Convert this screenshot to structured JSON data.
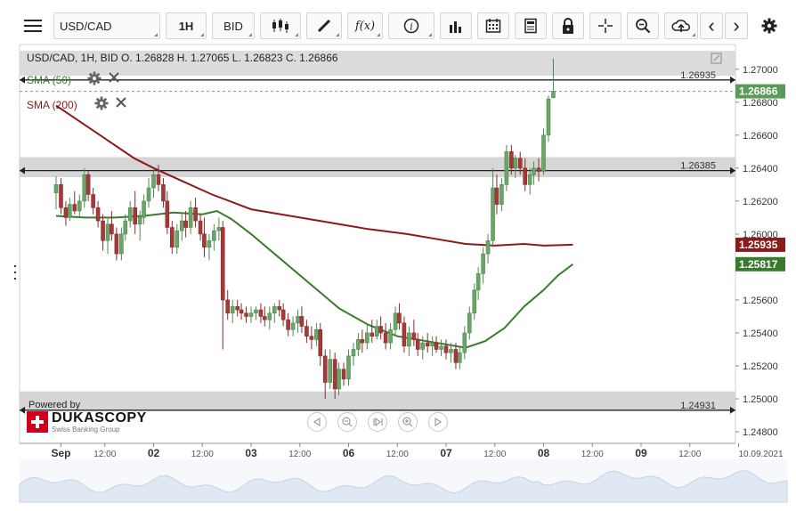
{
  "toolbar": {
    "menu_icon": "hamburger-icon",
    "symbol": "USD/CAD",
    "timeframe": "1H",
    "price_side": "BID",
    "chart_type_icon": "candlestick-icon",
    "draw_icon": "pencil-icon",
    "fx_label": "f(x)",
    "info_icon": "info-icon",
    "volume_icon": "bar-chart-icon",
    "calendar_icon": "calendar-icon",
    "notes_icon": "document-icon",
    "lock_icon": "lock-icon",
    "crosshair_icon": "crosshair-icon",
    "zoom_icon": "magnifier-icon",
    "upload_icon": "cloud-upload-icon",
    "back_label": "‹",
    "forward_label": "›",
    "settings_icon": "gear-icon"
  },
  "header": {
    "ohlc": "USD/CAD, 1H, BID   O. 1.26828 H. 1.27065 L. 1.26823 C. 1.26866"
  },
  "indicators": [
    {
      "label": "SMA (50)",
      "color": "#3a7a2e"
    },
    {
      "label": "SMA (200)",
      "color": "#8b1a1a"
    }
  ],
  "branding": {
    "powered_by": "Powered by",
    "name": "DUKASCOPY",
    "sub": "Swiss Banking Group"
  },
  "chart_data": {
    "type": "candlestick",
    "symbol": "USD/CAD",
    "timeframe": "1H",
    "ohlc_last": {
      "open": 1.26828,
      "high": 1.27065,
      "low": 1.26823,
      "close": 1.26866
    },
    "y_ticks": [
      "1.27000",
      "1.26800",
      "1.26600",
      "1.26400",
      "1.26200",
      "1.26000",
      "1.25800",
      "1.25600",
      "1.25400",
      "1.25200",
      "1.25000",
      "1.24800"
    ],
    "ylim": [
      1.2473,
      1.2715
    ],
    "x_ticks": [
      {
        "label": "Sep",
        "day": 0.05,
        "bold": true
      },
      {
        "label": "12:00",
        "day": 0.5
      },
      {
        "label": "02",
        "day": 1.0,
        "bold": true
      },
      {
        "label": "12:00",
        "day": 1.5
      },
      {
        "label": "03",
        "day": 2.0,
        "bold": true
      },
      {
        "label": "12:00",
        "day": 2.5
      },
      {
        "label": "06",
        "day": 3.0,
        "bold": true
      },
      {
        "label": "12:00",
        "day": 3.5
      },
      {
        "label": "07",
        "day": 4.0,
        "bold": true
      },
      {
        "label": "12:00",
        "day": 4.5
      },
      {
        "label": "08",
        "day": 5.0,
        "bold": true
      },
      {
        "label": "12:00",
        "day": 5.5
      },
      {
        "label": "09",
        "day": 6.0,
        "bold": true
      },
      {
        "label": "12:00",
        "day": 6.5
      },
      {
        "label": "10.09.2021",
        "day": 7.0
      }
    ],
    "horizontal_levels": [
      {
        "value": 1.26935,
        "label": "1.26935"
      },
      {
        "value": 1.26385,
        "label": "1.26385"
      },
      {
        "value": 1.24931,
        "label": "1.24931"
      }
    ],
    "zones": [
      [
        1.26467,
        1.26345
      ],
      [
        1.25045,
        1.24931
      ]
    ],
    "price_tags": [
      {
        "value": 1.26866,
        "label": "1.26866",
        "color": "#5a9a5a"
      },
      {
        "value": 1.25935,
        "label": "1.25935",
        "color": "#8b1a1a"
      },
      {
        "value": 1.25817,
        "label": "1.25817",
        "color": "#3a7a2e"
      }
    ],
    "sma200": [
      [
        0.0,
        1.2678
      ],
      [
        0.4,
        1.2662
      ],
      [
        0.8,
        1.2646
      ],
      [
        1.0,
        1.264
      ],
      [
        1.3,
        1.2632
      ],
      [
        1.6,
        1.2624
      ],
      [
        2.0,
        1.2615
      ],
      [
        2.4,
        1.2611
      ],
      [
        2.8,
        1.2607
      ],
      [
        3.2,
        1.2603
      ],
      [
        3.6,
        1.26
      ],
      [
        4.0,
        1.2596
      ],
      [
        4.2,
        1.2594
      ],
      [
        4.5,
        1.2593
      ],
      [
        4.8,
        1.2594
      ],
      [
        5.0,
        1.2593
      ],
      [
        5.3,
        1.25935
      ]
    ],
    "sma50": [
      [
        0.0,
        1.2611
      ],
      [
        0.3,
        1.261
      ],
      [
        0.6,
        1.261
      ],
      [
        0.9,
        1.2611
      ],
      [
        1.2,
        1.2613
      ],
      [
        1.5,
        1.2612
      ],
      [
        1.65,
        1.2614
      ],
      [
        1.8,
        1.2609
      ],
      [
        2.0,
        1.26
      ],
      [
        2.3,
        1.2585
      ],
      [
        2.6,
        1.257
      ],
      [
        2.9,
        1.2555
      ],
      [
        3.2,
        1.2545
      ],
      [
        3.5,
        1.2538
      ],
      [
        3.8,
        1.2535
      ],
      [
        4.0,
        1.2533
      ],
      [
        4.2,
        1.2531
      ],
      [
        4.4,
        1.2535
      ],
      [
        4.6,
        1.2543
      ],
      [
        4.8,
        1.2556
      ],
      [
        5.0,
        1.2566
      ],
      [
        5.15,
        1.2575
      ],
      [
        5.3,
        1.25817
      ]
    ],
    "candles": [
      [
        0.0,
        1.2625,
        1.2635,
        1.2615,
        1.263
      ],
      [
        0.05,
        1.263,
        1.2634,
        1.2612,
        1.2616
      ],
      [
        0.1,
        1.2616,
        1.262,
        1.2605,
        1.261
      ],
      [
        0.14,
        1.261,
        1.2622,
        1.2608,
        1.2618
      ],
      [
        0.19,
        1.2618,
        1.2626,
        1.2612,
        1.2614
      ],
      [
        0.24,
        1.2614,
        1.2624,
        1.261,
        1.262
      ],
      [
        0.29,
        1.262,
        1.264,
        1.2616,
        1.2636
      ],
      [
        0.33,
        1.2636,
        1.2638,
        1.262,
        1.2624
      ],
      [
        0.38,
        1.2624,
        1.2628,
        1.2612,
        1.2616
      ],
      [
        0.43,
        1.2616,
        1.262,
        1.2604,
        1.2608
      ],
      [
        0.48,
        1.2608,
        1.2612,
        1.259,
        1.2596
      ],
      [
        0.53,
        1.2596,
        1.261,
        1.2588,
        1.2606
      ],
      [
        0.57,
        1.2606,
        1.2614,
        1.2596,
        1.26
      ],
      [
        0.62,
        1.26,
        1.2604,
        1.2584,
        1.2588
      ],
      [
        0.67,
        1.2588,
        1.2604,
        1.2584,
        1.26
      ],
      [
        0.71,
        1.26,
        1.2612,
        1.2596,
        1.2608
      ],
      [
        0.76,
        1.2608,
        1.262,
        1.2604,
        1.2616
      ],
      [
        0.81,
        1.2616,
        1.2626,
        1.26,
        1.2606
      ],
      [
        0.86,
        1.2606,
        1.2614,
        1.2596,
        1.261
      ],
      [
        0.9,
        1.261,
        1.2624,
        1.2606,
        1.262
      ],
      [
        0.95,
        1.262,
        1.2634,
        1.2616,
        1.2628
      ],
      [
        1.0,
        1.2628,
        1.264,
        1.2622,
        1.2636
      ],
      [
        1.05,
        1.2636,
        1.2642,
        1.2626,
        1.263
      ],
      [
        1.1,
        1.263,
        1.2634,
        1.2616,
        1.262
      ],
      [
        1.14,
        1.262,
        1.2626,
        1.26,
        1.2604
      ],
      [
        1.19,
        1.2604,
        1.2608,
        1.2588,
        1.2592
      ],
      [
        1.24,
        1.2592,
        1.2606,
        1.2588,
        1.2602
      ],
      [
        1.29,
        1.2602,
        1.2612,
        1.2596,
        1.2608
      ],
      [
        1.33,
        1.2608,
        1.2614,
        1.2598,
        1.2604
      ],
      [
        1.38,
        1.2604,
        1.262,
        1.26,
        1.2616
      ],
      [
        1.43,
        1.2616,
        1.2622,
        1.2604,
        1.2608
      ],
      [
        1.48,
        1.2608,
        1.2612,
        1.2596,
        1.26
      ],
      [
        1.52,
        1.26,
        1.261,
        1.2586,
        1.2592
      ],
      [
        1.57,
        1.2592,
        1.26,
        1.2584,
        1.2596
      ],
      [
        1.62,
        1.2596,
        1.2606,
        1.259,
        1.2602
      ],
      [
        1.67,
        1.2602,
        1.261,
        1.2596,
        1.2604
      ],
      [
        1.71,
        1.2604,
        1.2608,
        1.253,
        1.256
      ],
      [
        1.76,
        1.256,
        1.2566,
        1.2548,
        1.2552
      ],
      [
        1.81,
        1.2552,
        1.256,
        1.2546,
        1.2556
      ],
      [
        1.86,
        1.2556,
        1.256,
        1.255,
        1.2554
      ],
      [
        1.9,
        1.2554,
        1.2558,
        1.2548,
        1.2552
      ],
      [
        1.95,
        1.2552,
        1.2556,
        1.2546,
        1.255
      ],
      [
        2.0,
        1.255,
        1.2556,
        1.2546,
        1.2552
      ],
      [
        2.05,
        1.2552,
        1.2556,
        1.2548,
        1.2554
      ],
      [
        2.1,
        1.2554,
        1.2558,
        1.2546,
        1.255
      ],
      [
        2.14,
        1.255,
        1.2556,
        1.2544,
        1.2548
      ],
      [
        2.19,
        1.2548,
        1.2556,
        1.2542,
        1.2552
      ],
      [
        2.24,
        1.2552,
        1.2558,
        1.2546,
        1.2556
      ],
      [
        2.29,
        1.2556,
        1.256,
        1.255,
        1.2554
      ],
      [
        2.33,
        1.2554,
        1.2558,
        1.2544,
        1.2548
      ],
      [
        2.38,
        1.2548,
        1.2552,
        1.2538,
        1.2542
      ],
      [
        2.43,
        1.2542,
        1.255,
        1.2538,
        1.2546
      ],
      [
        2.48,
        1.2546,
        1.2554,
        1.254,
        1.255
      ],
      [
        2.52,
        1.255,
        1.2556,
        1.254,
        1.2544
      ],
      [
        2.57,
        1.2544,
        1.2548,
        1.2534,
        1.2538
      ],
      [
        2.62,
        1.2538,
        1.2544,
        1.253,
        1.2536
      ],
      [
        2.67,
        1.2536,
        1.2546,
        1.2532,
        1.2542
      ],
      [
        2.71,
        1.2542,
        1.2546,
        1.252,
        1.2526
      ],
      [
        2.76,
        1.2526,
        1.253,
        1.25,
        1.251
      ],
      [
        2.81,
        1.251,
        1.253,
        1.2506,
        1.2524
      ],
      [
        2.86,
        1.2524,
        1.2528,
        1.25,
        1.2506
      ],
      [
        2.9,
        1.2506,
        1.2522,
        1.2502,
        1.2518
      ],
      [
        2.95,
        1.2518,
        1.2522,
        1.2508,
        1.2512
      ],
      [
        3.0,
        1.2512,
        1.253,
        1.2508,
        1.2526
      ],
      [
        3.05,
        1.2526,
        1.2534,
        1.252,
        1.253
      ],
      [
        3.1,
        1.253,
        1.254,
        1.2526,
        1.2536
      ],
      [
        3.14,
        1.2536,
        1.2542,
        1.2528,
        1.2534
      ],
      [
        3.19,
        1.2534,
        1.2546,
        1.253,
        1.254
      ],
      [
        3.24,
        1.254,
        1.2548,
        1.2534,
        1.2538
      ],
      [
        3.29,
        1.2538,
        1.2548,
        1.2536,
        1.2544
      ],
      [
        3.33,
        1.2544,
        1.255,
        1.2536,
        1.254
      ],
      [
        3.38,
        1.254,
        1.2546,
        1.253,
        1.2534
      ],
      [
        3.43,
        1.2534,
        1.2546,
        1.253,
        1.2542
      ],
      [
        3.48,
        1.2542,
        1.2556,
        1.2538,
        1.2552
      ],
      [
        3.52,
        1.2552,
        1.2558,
        1.2542,
        1.2546
      ],
      [
        3.57,
        1.2546,
        1.255,
        1.2528,
        1.2532
      ],
      [
        3.62,
        1.2532,
        1.2544,
        1.2526,
        1.254
      ],
      [
        3.67,
        1.254,
        1.2548,
        1.2532,
        1.2536
      ],
      [
        3.71,
        1.2536,
        1.254,
        1.2526,
        1.253
      ],
      [
        3.76,
        1.253,
        1.2538,
        1.2524,
        1.2534
      ],
      [
        3.81,
        1.2534,
        1.254,
        1.2528,
        1.2532
      ],
      [
        3.86,
        1.2532,
        1.2538,
        1.2526,
        1.2534
      ],
      [
        3.9,
        1.2534,
        1.2538,
        1.2528,
        1.253
      ],
      [
        3.95,
        1.253,
        1.2536,
        1.2526,
        1.2532
      ],
      [
        4.0,
        1.2532,
        1.2536,
        1.2524,
        1.2528
      ],
      [
        4.05,
        1.2528,
        1.2534,
        1.2522,
        1.253
      ],
      [
        4.1,
        1.253,
        1.2534,
        1.2518,
        1.2522
      ],
      [
        4.14,
        1.2522,
        1.2532,
        1.2518,
        1.2528
      ],
      [
        4.19,
        1.2528,
        1.2544,
        1.2524,
        1.254
      ],
      [
        4.24,
        1.254,
        1.2556,
        1.2536,
        1.2552
      ],
      [
        4.29,
        1.2552,
        1.257,
        1.2548,
        1.2566
      ],
      [
        4.33,
        1.2566,
        1.258,
        1.256,
        1.2576
      ],
      [
        4.38,
        1.2576,
        1.2592,
        1.257,
        1.2588
      ],
      [
        4.43,
        1.2588,
        1.26,
        1.2582,
        1.2596
      ],
      [
        4.48,
        1.2596,
        1.264,
        1.2592,
        1.2628
      ],
      [
        4.52,
        1.2628,
        1.2636,
        1.2612,
        1.2618
      ],
      [
        4.57,
        1.2618,
        1.2634,
        1.2614,
        1.263
      ],
      [
        4.62,
        1.263,
        1.2654,
        1.2626,
        1.265
      ],
      [
        4.67,
        1.265,
        1.2654,
        1.2636,
        1.264
      ],
      [
        4.71,
        1.264,
        1.2648,
        1.2634,
        1.2646
      ],
      [
        4.76,
        1.2646,
        1.265,
        1.2636,
        1.264
      ],
      [
        4.81,
        1.264,
        1.2646,
        1.2626,
        1.263
      ],
      [
        4.86,
        1.263,
        1.264,
        1.2624,
        1.2636
      ],
      [
        4.9,
        1.2636,
        1.2644,
        1.263,
        1.264
      ],
      [
        4.95,
        1.264,
        1.2646,
        1.2632,
        1.2638
      ],
      [
        5.0,
        1.2638,
        1.2664,
        1.2636,
        1.266
      ],
      [
        5.05,
        1.266,
        1.2684,
        1.2656,
        1.2682
      ],
      [
        5.1,
        1.26828,
        1.27065,
        1.26823,
        1.26866
      ]
    ]
  }
}
